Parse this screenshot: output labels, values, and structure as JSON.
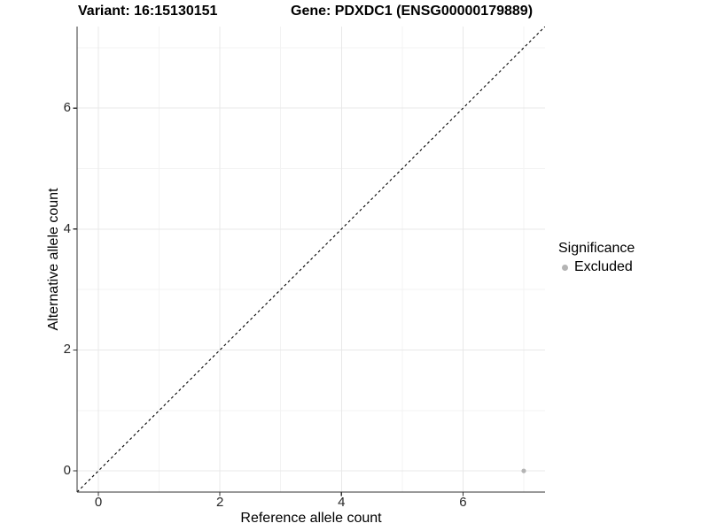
{
  "chart_data": {
    "type": "scatter",
    "title_left": "Variant: 16:15130151",
    "title_right": "Gene: PDXDC1 (ENSG00000179889)",
    "xlabel": "Reference allele count",
    "ylabel": "Alternative allele count",
    "xlim": [
      -0.35,
      7.35
    ],
    "ylim": [
      -0.35,
      7.35
    ],
    "x_ticks": [
      0,
      2,
      4,
      6
    ],
    "y_ticks": [
      0,
      2,
      4,
      6
    ],
    "grid": {
      "major_at": [
        0,
        2,
        4,
        6
      ],
      "minor_at": [
        1,
        3,
        5,
        7
      ],
      "major_color": "#e8e8e8",
      "minor_color": "#f3f3f3"
    },
    "reference_line": {
      "style": "dashed",
      "color": "#000000",
      "from": [
        -0.35,
        -0.35
      ],
      "to": [
        7.35,
        7.35
      ]
    },
    "series": [
      {
        "name": "Excluded",
        "color": "#b4b4b4",
        "point_radius": 2.6,
        "points": [
          {
            "x": 7,
            "y": 0
          }
        ]
      }
    ],
    "legend": {
      "title": "Significance",
      "position": "right",
      "items": [
        {
          "label": "Excluded",
          "color": "#b4b4b4"
        }
      ]
    },
    "axis_color": "#333333"
  }
}
